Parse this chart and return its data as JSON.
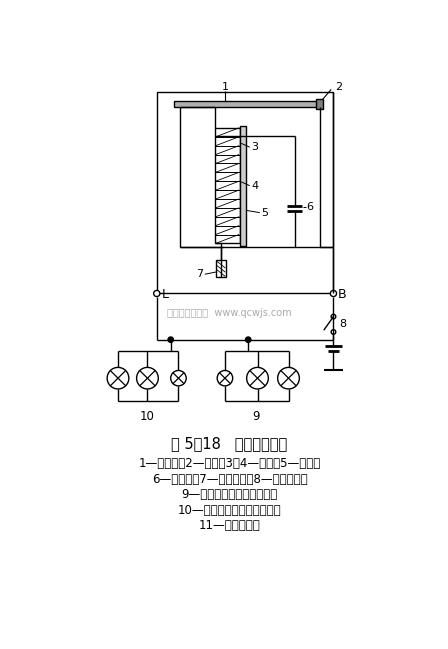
{
  "bg_color": "#ffffff",
  "line_color": "#000000",
  "fig_width": 4.48,
  "fig_height": 6.49,
  "title": "图 5．18   电容式闪光器",
  "caption_lines": [
    "1—弹簧片；2—触点；3、4—线圈；5—铁心；",
    "6—电容器；7—灭弧电阻；8—电源开关；",
    "9—右转向信号灯和指示灯；",
    "10—左转向信号灯和指示灯；",
    "11—转向灯开关"
  ],
  "watermark": "汽车维修技术网  www.qcwjs.com"
}
